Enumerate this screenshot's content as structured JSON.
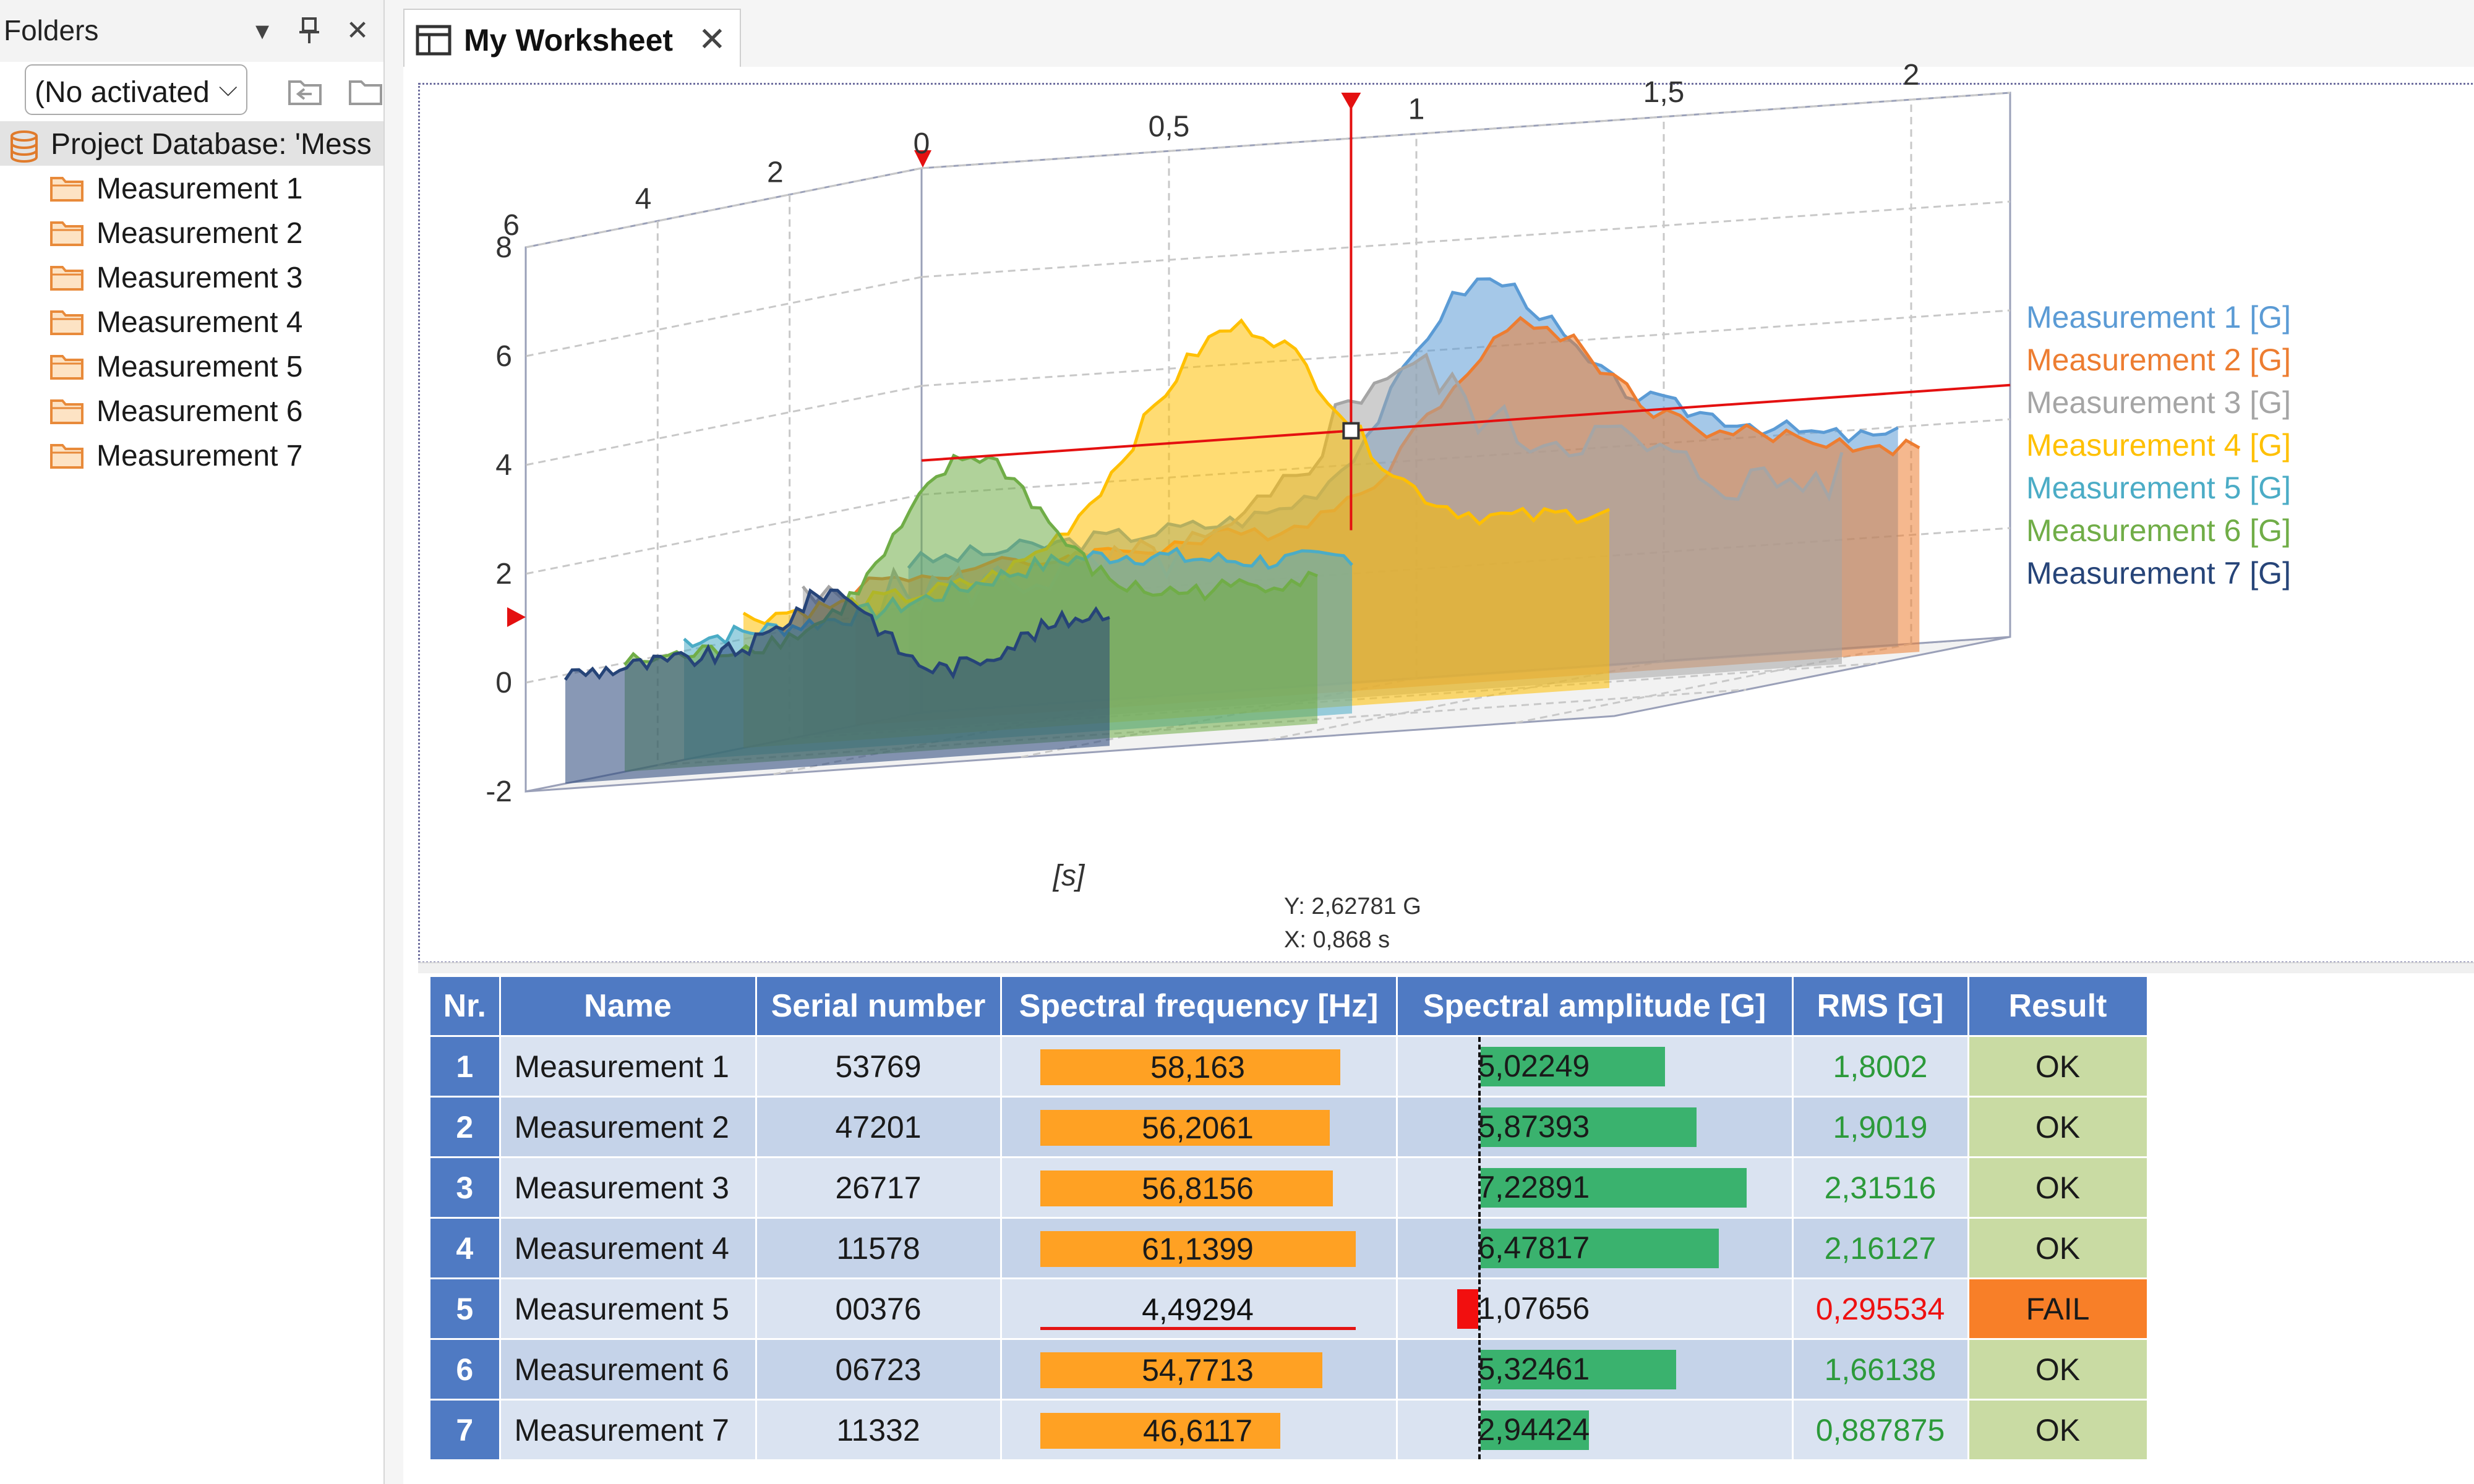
{
  "folders_pane": {
    "title": "Folders",
    "context_select": "(No activated",
    "root": "Project Database: 'Mess",
    "items": [
      "Measurement 1",
      "Measurement 2",
      "Measurement 3",
      "Measurement 4",
      "Measurement 5",
      "Measurement 6",
      "Measurement 7"
    ]
  },
  "tab": {
    "title": "My Worksheet"
  },
  "chart_data": {
    "type": "area",
    "xlabel": "[s]",
    "x_ticks": [
      "0",
      "0,5",
      "1",
      "1,5",
      "2"
    ],
    "y_ticks": [
      "-2",
      "0",
      "2",
      "4",
      "6",
      "8"
    ],
    "z_ticks": [
      "2",
      "4",
      "6"
    ],
    "series": [
      {
        "name": "Measurement 1 [G]",
        "color": "#5b9bd5"
      },
      {
        "name": "Measurement 2 [G]",
        "color": "#ed7d31"
      },
      {
        "name": "Measurement 3 [G]",
        "color": "#a5a5a5"
      },
      {
        "name": "Measurement 4 [G]",
        "color": "#ffc000"
      },
      {
        "name": "Measurement 5 [G]",
        "color": "#4bacc6"
      },
      {
        "name": "Measurement 6 [G]",
        "color": "#70ad47"
      },
      {
        "name": "Measurement 7 [G]",
        "color": "#264478"
      }
    ],
    "cursor": {
      "y_readout": "Y: 2,62781 G",
      "x_readout": "X: 0,868 s"
    },
    "legend": "right"
  },
  "table": {
    "headers": [
      "Nr.",
      "Name",
      "Serial number",
      "Spectral frequency [Hz]",
      "Spectral amplitude [G]",
      "RMS [G]",
      "Result"
    ],
    "rows": [
      {
        "nr": "1",
        "name": "Measurement 1",
        "serial": "53769",
        "freq": "58,163",
        "amp": "5,02249",
        "rms": "1,8002",
        "result": "OK"
      },
      {
        "nr": "2",
        "name": "Measurement 2",
        "serial": "47201",
        "freq": "56,2061",
        "amp": "5,87393",
        "rms": "1,9019",
        "result": "OK"
      },
      {
        "nr": "3",
        "name": "Measurement 3",
        "serial": "26717",
        "freq": "56,8156",
        "amp": "7,22891",
        "rms": "2,31516",
        "result": "OK"
      },
      {
        "nr": "4",
        "name": "Measurement 4",
        "serial": "11578",
        "freq": "61,1399",
        "amp": "6,47817",
        "rms": "2,16127",
        "result": "OK"
      },
      {
        "nr": "5",
        "name": "Measurement 5",
        "serial": "00376",
        "freq": "4,49294",
        "amp": "1,07656",
        "rms": "0,295534",
        "result": "FAIL"
      },
      {
        "nr": "6",
        "name": "Measurement 6",
        "serial": "06723",
        "freq": "54,7713",
        "amp": "5,32461",
        "rms": "1,66138",
        "result": "OK"
      },
      {
        "nr": "7",
        "name": "Measurement 7",
        "serial": "11332",
        "freq": "46,6117",
        "amp": "2,94424",
        "rms": "0,887875",
        "result": "OK"
      }
    ]
  }
}
